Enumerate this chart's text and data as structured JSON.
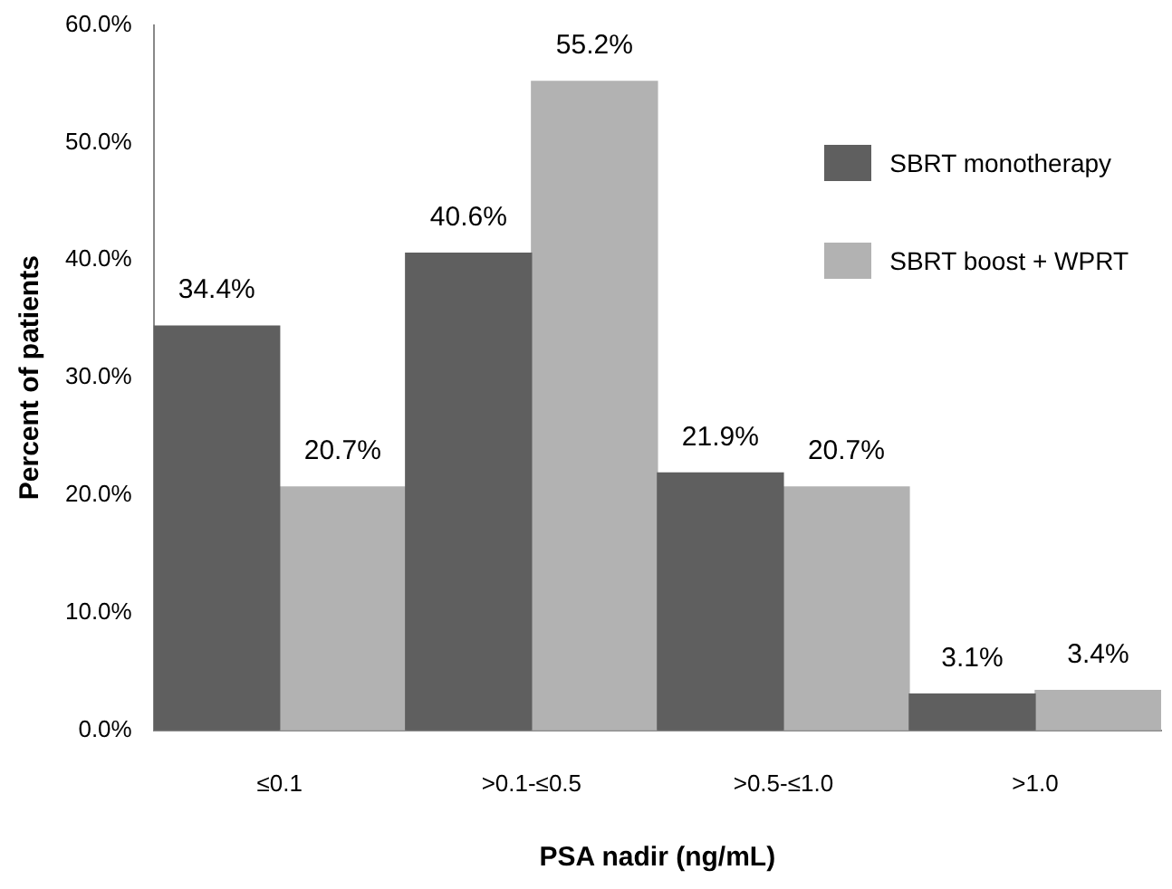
{
  "chart_data": {
    "type": "bar",
    "xlabel": "PSA nadir (ng/mL)",
    "ylabel": "Percent of patients",
    "categories": [
      "≤0.1",
      ">0.1-≤0.5",
      ">0.5-≤1.0",
      ">1.0"
    ],
    "series": [
      {
        "name": "SBRT monotherapy",
        "color": "#5f5f5f",
        "values": [
          34.4,
          40.6,
          21.9,
          3.1
        ],
        "value_labels": [
          "34.4%",
          "40.6%",
          "21.9%",
          "3.1%"
        ]
      },
      {
        "name": "SBRT boost + WPRT",
        "color": "#b2b2b2",
        "values": [
          20.7,
          55.2,
          20.7,
          3.4
        ],
        "value_labels": [
          "20.7%",
          "55.2%",
          "20.7%",
          "3.4%"
        ]
      }
    ],
    "ylim": [
      0,
      60
    ],
    "yticks": [
      {
        "value": 0,
        "label": "0.0%"
      },
      {
        "value": 10,
        "label": "10.0%"
      },
      {
        "value": 20,
        "label": "20.0%"
      },
      {
        "value": 30,
        "label": "30.0%"
      },
      {
        "value": 40,
        "label": "40.0%"
      },
      {
        "value": 50,
        "label": "50.0%"
      },
      {
        "value": 60,
        "label": "60.0%"
      }
    ],
    "grid": false,
    "legend": "top right"
  }
}
